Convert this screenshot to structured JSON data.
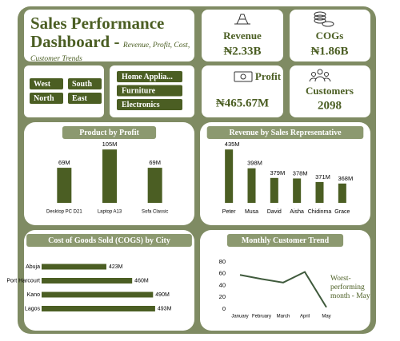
{
  "header": {
    "title": "Sales Performance Dashboard -",
    "subtitle": "Revenue, Profit, Cost, Customer Trends"
  },
  "kpis": [
    {
      "label": "Revenue",
      "value": "₦2.33B"
    },
    {
      "label": "COGs",
      "value": "₦1.86B"
    },
    {
      "label": "Profit",
      "value": "₦465.67M"
    },
    {
      "label": "Customers",
      "value": "2098"
    }
  ],
  "slicers": {
    "region": [
      "West",
      "South",
      "North",
      "East"
    ],
    "category": [
      "Home Applia...",
      "Furniture",
      "Electronics"
    ]
  },
  "chart_data": [
    {
      "type": "bar",
      "title": "Product by Profit",
      "categories": [
        "Desktop PC D21",
        "Laptop A13",
        "Sofa Classic"
      ],
      "values": [
        69,
        105,
        69
      ],
      "value_labels": [
        "69M",
        "105M",
        "69M"
      ],
      "color": "#4b5e23",
      "ylim": [
        0,
        110
      ]
    },
    {
      "type": "bar",
      "title": "Revenue by Sales Representative",
      "categories": [
        "Peter",
        "Musa",
        "David",
        "Aisha",
        "Chidinma",
        "Grace"
      ],
      "values": [
        435,
        398,
        379,
        378,
        371,
        368
      ],
      "value_labels": [
        "435M",
        "398M",
        "379M",
        "378M",
        "371M",
        "368M"
      ],
      "color": "#4b5e23",
      "ylim": [
        330,
        440
      ]
    },
    {
      "type": "bar",
      "orientation": "horizontal",
      "title": "Cost of Goods Sold (COGS) by City",
      "categories": [
        "Abuja",
        "Port Harcourt",
        "Kano",
        "Lagos"
      ],
      "values": [
        423,
        460,
        490,
        493
      ],
      "value_labels": [
        "423M",
        "460M",
        "490M",
        "493M"
      ],
      "color": "#4b5e23",
      "xlim": [
        330,
        500
      ]
    },
    {
      "type": "line",
      "title": "Monthly Customer Trend",
      "categories": [
        "January",
        "February",
        "March",
        "April",
        "May"
      ],
      "values": [
        58,
        51,
        45,
        63,
        3
      ],
      "color": "#3f5a3c",
      "ylim": [
        0,
        80
      ],
      "yticks": [
        0,
        20,
        40,
        60,
        80
      ],
      "annotation": "Worst-performing month - May"
    }
  ]
}
